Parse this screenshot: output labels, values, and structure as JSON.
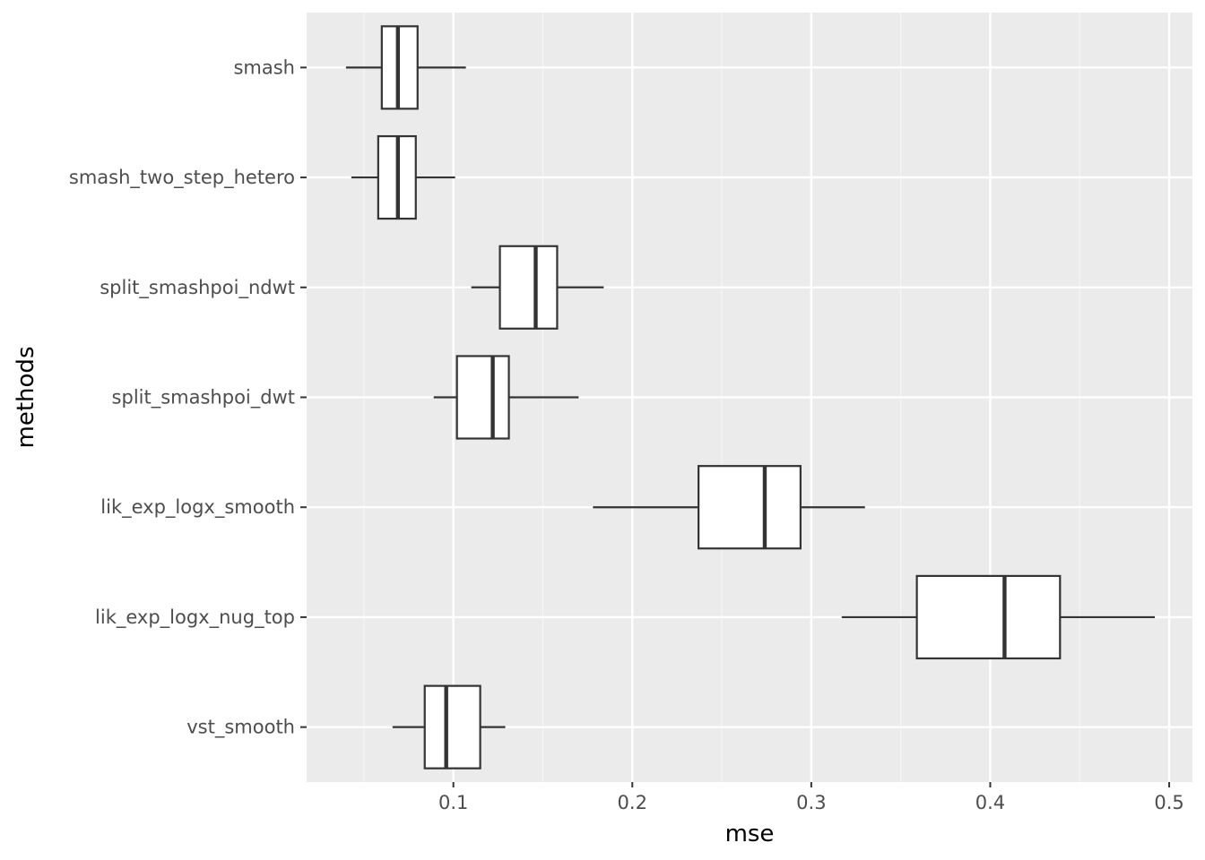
{
  "chart_data": {
    "type": "boxplot",
    "orientation": "horizontal",
    "title": "",
    "xlabel": "mse",
    "ylabel": "methods",
    "xlim": [
      0.018,
      0.513
    ],
    "x_ticks": [
      {
        "value": 0.1,
        "label": "0.1"
      },
      {
        "value": 0.2,
        "label": "0.2"
      },
      {
        "value": 0.3,
        "label": "0.3"
      },
      {
        "value": 0.4,
        "label": "0.4"
      },
      {
        "value": 0.5,
        "label": "0.5"
      }
    ],
    "x_minor_ticks": [
      0.05,
      0.15,
      0.25,
      0.35,
      0.45
    ],
    "categories": [
      "smash",
      "smash_two_step_hetero",
      "split_smashpoi_ndwt",
      "split_smashpoi_dwt",
      "lik_exp_logx_smooth",
      "lik_exp_logx_nug_top",
      "vst_smooth"
    ],
    "boxes": [
      {
        "method": "smash",
        "whisker_low": 0.04,
        "q1": 0.06,
        "median": 0.069,
        "q3": 0.08,
        "whisker_high": 0.107
      },
      {
        "method": "smash_two_step_hetero",
        "whisker_low": 0.043,
        "q1": 0.058,
        "median": 0.069,
        "q3": 0.079,
        "whisker_high": 0.101
      },
      {
        "method": "split_smashpoi_ndwt",
        "whisker_low": 0.11,
        "q1": 0.126,
        "median": 0.146,
        "q3": 0.158,
        "whisker_high": 0.184
      },
      {
        "method": "split_smashpoi_dwt",
        "whisker_low": 0.089,
        "q1": 0.102,
        "median": 0.122,
        "q3": 0.131,
        "whisker_high": 0.17
      },
      {
        "method": "lik_exp_logx_smooth",
        "whisker_low": 0.178,
        "q1": 0.237,
        "median": 0.274,
        "q3": 0.294,
        "whisker_high": 0.33
      },
      {
        "method": "lik_exp_logx_nug_top",
        "whisker_low": 0.317,
        "q1": 0.359,
        "median": 0.408,
        "q3": 0.439,
        "whisker_high": 0.492
      },
      {
        "method": "vst_smooth",
        "whisker_low": 0.066,
        "q1": 0.084,
        "median": 0.096,
        "q3": 0.115,
        "whisker_high": 0.129
      }
    ],
    "colors": {
      "panel_background": "#ebebeb",
      "grid_major": "#ffffff",
      "grid_minor": "#f5f5f5",
      "box_fill": "#ffffff",
      "box_stroke": "#333333",
      "tick_text": "#4d4d4d",
      "title_text": "#000000"
    }
  }
}
